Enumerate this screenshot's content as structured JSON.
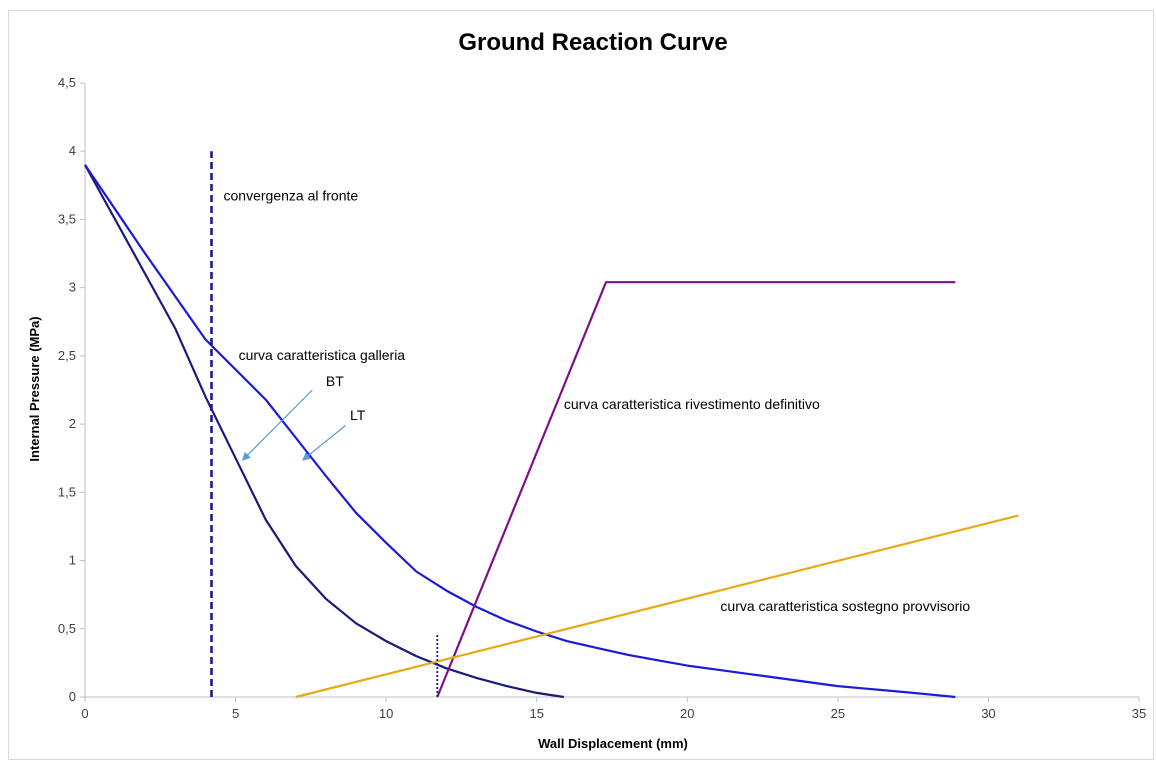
{
  "chart_data": {
    "type": "line",
    "title": "Ground Reaction Curve",
    "xlabel": "Wall Displacement (mm)",
    "ylabel": "Internal Pressure (MPa)",
    "xlim": [
      0,
      35
    ],
    "ylim": [
      0,
      4.5
    ],
    "x_ticks": [
      "0",
      "5",
      "10",
      "15",
      "20",
      "25",
      "30",
      "35"
    ],
    "y_ticks": [
      "0",
      "0,5",
      "1",
      "1,5",
      "2",
      "2,5",
      "3",
      "3,5",
      "4",
      "4,5"
    ],
    "grid": false,
    "legend": "none",
    "series": [
      {
        "color": "#1a1a7a",
        "style": "solid",
        "points": [
          [
            0,
            3.9
          ],
          [
            1,
            3.5
          ],
          [
            2,
            3.1
          ],
          [
            3,
            2.7
          ],
          [
            4,
            2.2
          ],
          [
            5,
            1.75
          ],
          [
            6,
            1.3
          ],
          [
            7,
            0.96
          ],
          [
            8,
            0.72
          ],
          [
            9,
            0.54
          ],
          [
            10,
            0.41
          ],
          [
            11,
            0.3
          ],
          [
            12,
            0.21
          ],
          [
            13,
            0.14
          ],
          [
            14,
            0.08
          ],
          [
            15,
            0.03
          ],
          [
            15.9,
            0
          ]
        ]
      },
      {
        "color": "#1a1adb",
        "style": "solid",
        "points": [
          [
            0,
            3.9
          ],
          [
            2,
            3.25
          ],
          [
            4,
            2.62
          ],
          [
            6,
            2.18
          ],
          [
            8,
            1.62
          ],
          [
            9,
            1.35
          ],
          [
            10,
            1.13
          ],
          [
            11,
            0.92
          ],
          [
            12,
            0.78
          ],
          [
            13,
            0.66
          ],
          [
            14,
            0.56
          ],
          [
            15,
            0.48
          ],
          [
            16,
            0.41
          ],
          [
            17,
            0.36
          ],
          [
            18,
            0.31
          ],
          [
            19,
            0.27
          ],
          [
            20,
            0.23
          ],
          [
            21,
            0.2
          ],
          [
            22,
            0.17
          ],
          [
            23,
            0.14
          ],
          [
            24,
            0.11
          ],
          [
            25,
            0.08
          ],
          [
            26,
            0.06
          ],
          [
            27,
            0.04
          ],
          [
            28,
            0.02
          ],
          [
            28.9,
            0
          ]
        ]
      },
      {
        "color": "#7b1287",
        "style": "solid",
        "points": [
          [
            11.7,
            0
          ],
          [
            17.3,
            3.04
          ],
          [
            28.9,
            3.04
          ]
        ]
      },
      {
        "color": "#e4ab16",
        "style": "solid",
        "points": [
          [
            7,
            0
          ],
          [
            31,
            1.33
          ]
        ]
      },
      {
        "color": "#1c1c8c",
        "style": "dashed",
        "points": [
          [
            4.2,
            0
          ],
          [
            4.2,
            4.0
          ]
        ]
      },
      {
        "color": "#1c1c8c",
        "style": "dotted",
        "points": [
          [
            11.7,
            0
          ],
          [
            11.7,
            0.47
          ]
        ]
      }
    ],
    "annotations": [
      {
        "text": "convergenza al fronte",
        "x": 4.6,
        "y": 3.64
      },
      {
        "text": "curva caratteristica galleria",
        "x": 5.1,
        "y": 2.47
      },
      {
        "text": "BT",
        "x": 8.0,
        "y": 2.28
      },
      {
        "text": "LT",
        "x": 8.8,
        "y": 2.03
      },
      {
        "text": "curva caratteristica rivestimento definitivo",
        "x": 15.9,
        "y": 2.11
      },
      {
        "text": "curva caratteristica sostegno provvisorio",
        "x": 21.1,
        "y": 0.63
      }
    ],
    "arrows": [
      {
        "color": "#5b9bd5",
        "from": [
          7.55,
          2.25
        ],
        "to": [
          5.25,
          1.74
        ]
      },
      {
        "color": "#5b9bd5",
        "from": [
          8.65,
          1.99
        ],
        "to": [
          7.25,
          1.74
        ]
      }
    ]
  }
}
